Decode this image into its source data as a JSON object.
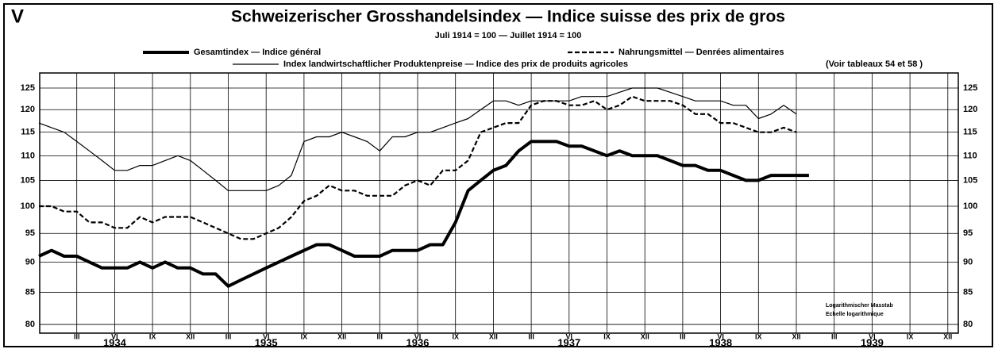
{
  "chart_data": {
    "type": "line",
    "panel": "V",
    "title": "Schweizerischer Grosshandelsindex — Indice suisse des prix de gros",
    "subtitle": "Juli 1914 = 100 — Juillet 1914 = 100",
    "note": "(Voir tableaux 54 et 58 )",
    "scale_note": [
      "Logarithmischer Masstab",
      "Echelle logarithmique"
    ],
    "log_scale": true,
    "grid": true,
    "categories": [
      null,
      null,
      null,
      "III",
      null,
      null,
      "VI",
      null,
      null,
      "IX",
      null,
      null,
      "XII",
      null,
      null,
      "III",
      null,
      null,
      "VI",
      null,
      null,
      "IX",
      null,
      null,
      "XII",
      null,
      null,
      "III",
      null,
      null,
      "VI",
      null,
      null,
      "IX",
      null,
      null,
      "XII",
      null,
      null,
      "III",
      null,
      null,
      "VI",
      null,
      null,
      "IX",
      null,
      null,
      "XII",
      null,
      null,
      "III",
      null,
      null,
      "VI",
      null,
      null,
      "IX",
      null,
      null,
      "XII",
      null,
      null,
      "III",
      null,
      null,
      "VI",
      null,
      null,
      "IX",
      null,
      null,
      "XII"
    ],
    "years": [
      "1934",
      "1935",
      "1936",
      "1937",
      "1938",
      "1939"
    ],
    "ylim": [
      78.7,
      128.6
    ],
    "yticks": [
      80,
      85,
      90,
      95,
      100,
      105,
      110,
      115,
      120,
      125
    ],
    "series": [
      {
        "name": "Gesamtindex — Indice général",
        "color": "#000000",
        "style": "thick",
        "values": [
          91,
          92,
          91,
          91,
          90,
          89,
          89,
          89,
          90,
          89,
          90,
          89,
          89,
          88,
          88,
          86,
          87,
          88,
          89,
          90,
          91,
          92,
          93,
          93,
          92,
          91,
          91,
          91,
          92,
          92,
          92,
          93,
          93,
          97,
          103,
          105,
          107,
          108,
          111,
          113,
          113,
          113,
          112,
          112,
          111,
          110,
          111,
          110,
          110,
          110,
          109,
          108,
          108,
          107,
          107,
          106,
          105,
          105,
          106,
          106,
          106,
          106,
          null,
          null,
          null,
          null,
          null,
          null,
          null,
          null,
          null,
          null,
          null
        ]
      },
      {
        "name": "Nahrungsmittel — Denrées alimentaires",
        "color": "#000000",
        "style": "dashed",
        "values": [
          100,
          100,
          99,
          99,
          97,
          97,
          96,
          96,
          98,
          97,
          98,
          98,
          98,
          97,
          96,
          95,
          94,
          94,
          95,
          96,
          98,
          101,
          102,
          104,
          103,
          103,
          102,
          102,
          102,
          104,
          105,
          104,
          107,
          107,
          109,
          115,
          116,
          117,
          117,
          121,
          122,
          122,
          121,
          121,
          122,
          120,
          121,
          123,
          122,
          122,
          122,
          121,
          119,
          119,
          117,
          117,
          116,
          115,
          115,
          116,
          115,
          null,
          null,
          null,
          null,
          null,
          null,
          null,
          null,
          null,
          null,
          null,
          null
        ]
      },
      {
        "name": "Index landwirtschaftlicher Produktenpreise — Indice des prix de produits agricoles",
        "color": "#000000",
        "style": "thin",
        "values": [
          117,
          116,
          115,
          113,
          111,
          109,
          107,
          107,
          108,
          108,
          109,
          110,
          109,
          107,
          105,
          103,
          103,
          103,
          103,
          104,
          106,
          113,
          114,
          114,
          115,
          114,
          113,
          111,
          114,
          114,
          115,
          115,
          116,
          117,
          118,
          120,
          122,
          122,
          121,
          122,
          122,
          122,
          122,
          123,
          123,
          123,
          124,
          125,
          125,
          125,
          124,
          123,
          122,
          122,
          122,
          121,
          121,
          118,
          119,
          121,
          119,
          null,
          null,
          null,
          null,
          null,
          null,
          null,
          null,
          null,
          null,
          null,
          null
        ]
      }
    ]
  }
}
